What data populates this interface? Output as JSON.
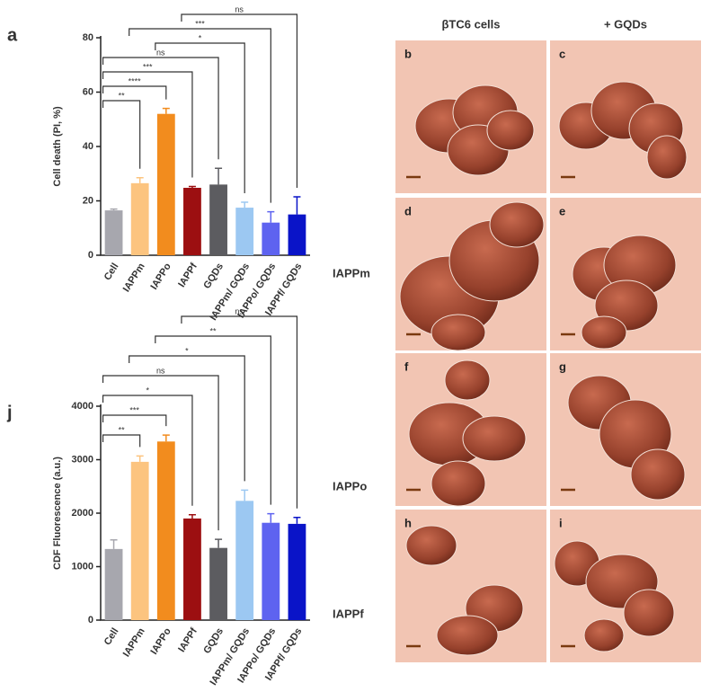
{
  "chart_data": [
    {
      "type": "bar",
      "label": "a",
      "ylabel": "Cell death (PI, %)",
      "categories": [
        "Cell",
        "IAPPm",
        "IAPPo",
        "IAPPf",
        "GQDs",
        "IAPPm/ GQDs",
        "IAPPo/ GQDs",
        "IAPPf/ GQDs"
      ],
      "values": [
        16.5,
        26.5,
        52,
        24.8,
        26,
        17.5,
        12,
        15
      ],
      "errors": [
        0.5,
        2,
        2,
        0.5,
        6,
        2,
        4,
        6.5
      ],
      "colors": [
        "#a7a7ae",
        "#fcc47f",
        "#f28c1e",
        "#9c0f11",
        "#5c5c60",
        "#9cc8f2",
        "#5e63f0",
        "#0a14c8"
      ],
      "ylim": [
        0,
        80
      ],
      "yticks": [
        0,
        20,
        40,
        60,
        80
      ],
      "brackets": [
        [
          "Cell",
          "IAPPm",
          "**"
        ],
        [
          "Cell",
          "IAPPo",
          "****"
        ],
        [
          "Cell",
          "IAPPf",
          "***"
        ],
        [
          "Cell",
          "GQDs",
          "ns"
        ],
        [
          "IAPPo",
          "IAPPm/ GQDs",
          "*"
        ],
        [
          "IAPPm",
          "IAPPo/ GQDs",
          "***"
        ],
        [
          "IAPPf",
          "IAPPf/ GQDs",
          "ns"
        ]
      ]
    },
    {
      "type": "bar",
      "label": "j",
      "ylabel": "CDF Fluorescence  (a.u.)",
      "categories": [
        "Cell",
        "IAPPm",
        "IAPPo",
        "IAPPf",
        "GQDs",
        "IAPPm/ GQDs",
        "IAPPo/ GQDs",
        "IAPPf/ GQDs"
      ],
      "values": [
        1330,
        2960,
        3340,
        1900,
        1350,
        2230,
        1820,
        1800
      ],
      "errors": [
        170,
        110,
        120,
        70,
        160,
        200,
        170,
        120
      ],
      "colors": [
        "#a7a7ae",
        "#fcc47f",
        "#f28c1e",
        "#9c0f11",
        "#5c5c60",
        "#9cc8f2",
        "#5e63f0",
        "#0a14c8"
      ],
      "ylim": [
        0,
        4000
      ],
      "yticks": [
        0,
        1000,
        2000,
        3000,
        4000
      ],
      "brackets": [
        [
          "Cell",
          "IAPPm",
          "**"
        ],
        [
          "Cell",
          "IAPPo",
          "***"
        ],
        [
          "Cell",
          "IAPPf",
          "*"
        ],
        [
          "Cell",
          "GQDs",
          "ns"
        ],
        [
          "IAPPm",
          "IAPPm/ GQDs",
          "*"
        ],
        [
          "IAPPo",
          "IAPPo/ GQDs",
          "**"
        ],
        [
          "IAPPf",
          "IAPPf/ GQDs",
          "ns"
        ]
      ]
    }
  ],
  "figure": {
    "column_headers": [
      "βTC6 cells",
      "+ GQDs"
    ],
    "row_labels": [
      "IAPPm",
      "IAPPo",
      "IAPPf"
    ],
    "panels": [
      "b",
      "c",
      "d",
      "e",
      "f",
      "g",
      "h",
      "i"
    ]
  }
}
